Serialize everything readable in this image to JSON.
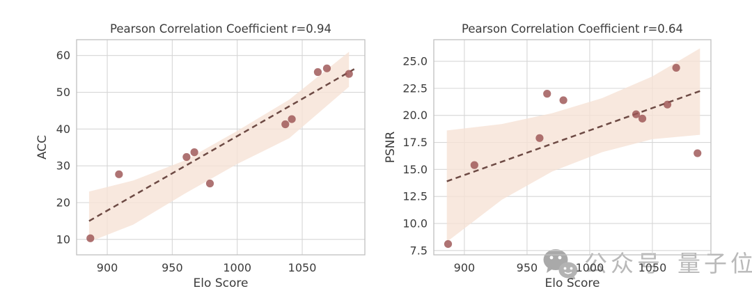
{
  "figure": {
    "background": "#ffffff"
  },
  "colors": {
    "point": "#9c5454",
    "point_opacity": 0.82,
    "line": "#6d4a44",
    "band": "#f6e2d6",
    "band_opacity": 0.8,
    "grid": "#d6d6d6",
    "frame": "#c0c0c0",
    "text": "#3b3b3b",
    "watermark": "#b9b9b9"
  },
  "chart_data": [
    {
      "type": "scatter",
      "title": "Pearson Correlation Coefficient r=0.94",
      "xlabel": "Elo Score",
      "ylabel": "ACC",
      "xlim": [
        876.4,
        1098.2
      ],
      "ylim": [
        5.8,
        64.3
      ],
      "xticks": [
        900,
        950,
        1000,
        1050
      ],
      "xtick_labels": [
        "900",
        "950",
        "1000",
        "1050"
      ],
      "yticks": [
        10,
        20,
        30,
        40,
        50,
        60
      ],
      "ytick_labels": [
        "10",
        "20",
        "30",
        "40",
        "50",
        "60"
      ],
      "grid": true,
      "legend": "none",
      "points": [
        [
          887,
          10.3
        ],
        [
          909,
          27.7
        ],
        [
          961,
          32.4
        ],
        [
          967,
          33.7
        ],
        [
          979,
          25.2
        ],
        [
          1037,
          41.3
        ],
        [
          1042,
          42.7
        ],
        [
          1062,
          55.5
        ],
        [
          1069,
          56.5
        ],
        [
          1086,
          55.0
        ]
      ],
      "regression": {
        "x": [
          886,
          1090
        ],
        "y": [
          15.0,
          56.3
        ]
      },
      "band": {
        "x": [
          886,
          920,
          960,
          1000,
          1040,
          1086
        ],
        "upper": [
          23.0,
          26.0,
          31.5,
          39.5,
          48.0,
          61.0
        ],
        "lower": [
          9.3,
          14.0,
          22.5,
          30.5,
          37.5,
          51.5
        ]
      }
    },
    {
      "type": "scatter",
      "title": "Pearson Correlation Coefficient r=0.64",
      "xlabel": "Elo Score",
      "ylabel": "PSNR",
      "xlim": [
        875.6,
        1096.7
      ],
      "ylim": [
        7.1,
        27.0
      ],
      "xticks": [
        900,
        950,
        1000,
        1050
      ],
      "xtick_labels": [
        "900",
        "950",
        "1000",
        "1050"
      ],
      "yticks": [
        7.5,
        10.0,
        12.5,
        15.0,
        17.5,
        20.0,
        22.5,
        25.0
      ],
      "ytick_labels": [
        "7.5",
        "10.0",
        "12.5",
        "15.0",
        "17.5",
        "20.0",
        "22.5",
        "25.0"
      ],
      "grid": true,
      "legend": "none",
      "points": [
        [
          887,
          8.1
        ],
        [
          908,
          15.4
        ],
        [
          960,
          17.9
        ],
        [
          966,
          22.0
        ],
        [
          979,
          21.4
        ],
        [
          1037,
          20.1
        ],
        [
          1042,
          19.7
        ],
        [
          1062,
          21.0
        ],
        [
          1069,
          24.4
        ],
        [
          1086,
          16.5
        ]
      ],
      "regression": {
        "x": [
          886,
          1088
        ],
        "y": [
          13.9,
          22.25
        ]
      },
      "band": {
        "x": [
          886,
          930,
          970,
          1010,
          1050,
          1088
        ],
        "upper": [
          18.6,
          19.2,
          20.2,
          21.6,
          23.6,
          26.2
        ],
        "lower": [
          8.3,
          12.2,
          14.8,
          16.6,
          17.8,
          18.2
        ]
      }
    }
  ],
  "watermark": {
    "icon": "wechat-icon",
    "prefix": "公众号",
    "name": "量子位"
  }
}
